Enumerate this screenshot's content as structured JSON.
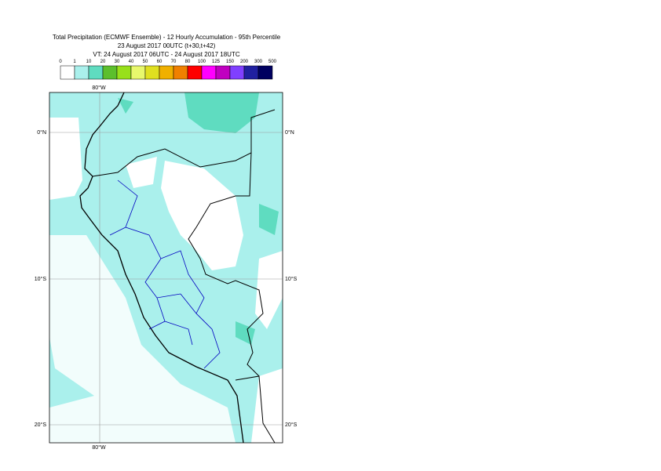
{
  "header": {
    "title": "Total Precipitation (ECMWF Ensemble) - 12 Hourly Accumulation - 95th Percentile",
    "base_time": "23 August 2017 00UTC (t+30,t+42)",
    "valid_time": "VT: 24 August 2017 06UTC - 24 August 2017 18UTC"
  },
  "legend": {
    "labels": [
      "0",
      "1",
      "10",
      "20",
      "30",
      "40",
      "50",
      "60",
      "70",
      "80",
      "100",
      "125",
      "150",
      "200",
      "300",
      "500"
    ],
    "colors": [
      "#ffffff",
      "#aaf0ec",
      "#5fdcc0",
      "#5cbf2c",
      "#98e01a",
      "#e8f86c",
      "#e0e020",
      "#f0b000",
      "#f08000",
      "#ff0000",
      "#ff00ff",
      "#c000c0",
      "#8040ff",
      "#2020a0",
      "#000060"
    ]
  },
  "map": {
    "lon_labels_top": [
      "80°W"
    ],
    "lon_labels_bottom": [
      "80°W"
    ],
    "lat_labels_left": [
      "0°N",
      "10°S",
      "20°S"
    ],
    "lat_labels_right": [
      "0°N",
      "10°S",
      "20°S"
    ]
  }
}
